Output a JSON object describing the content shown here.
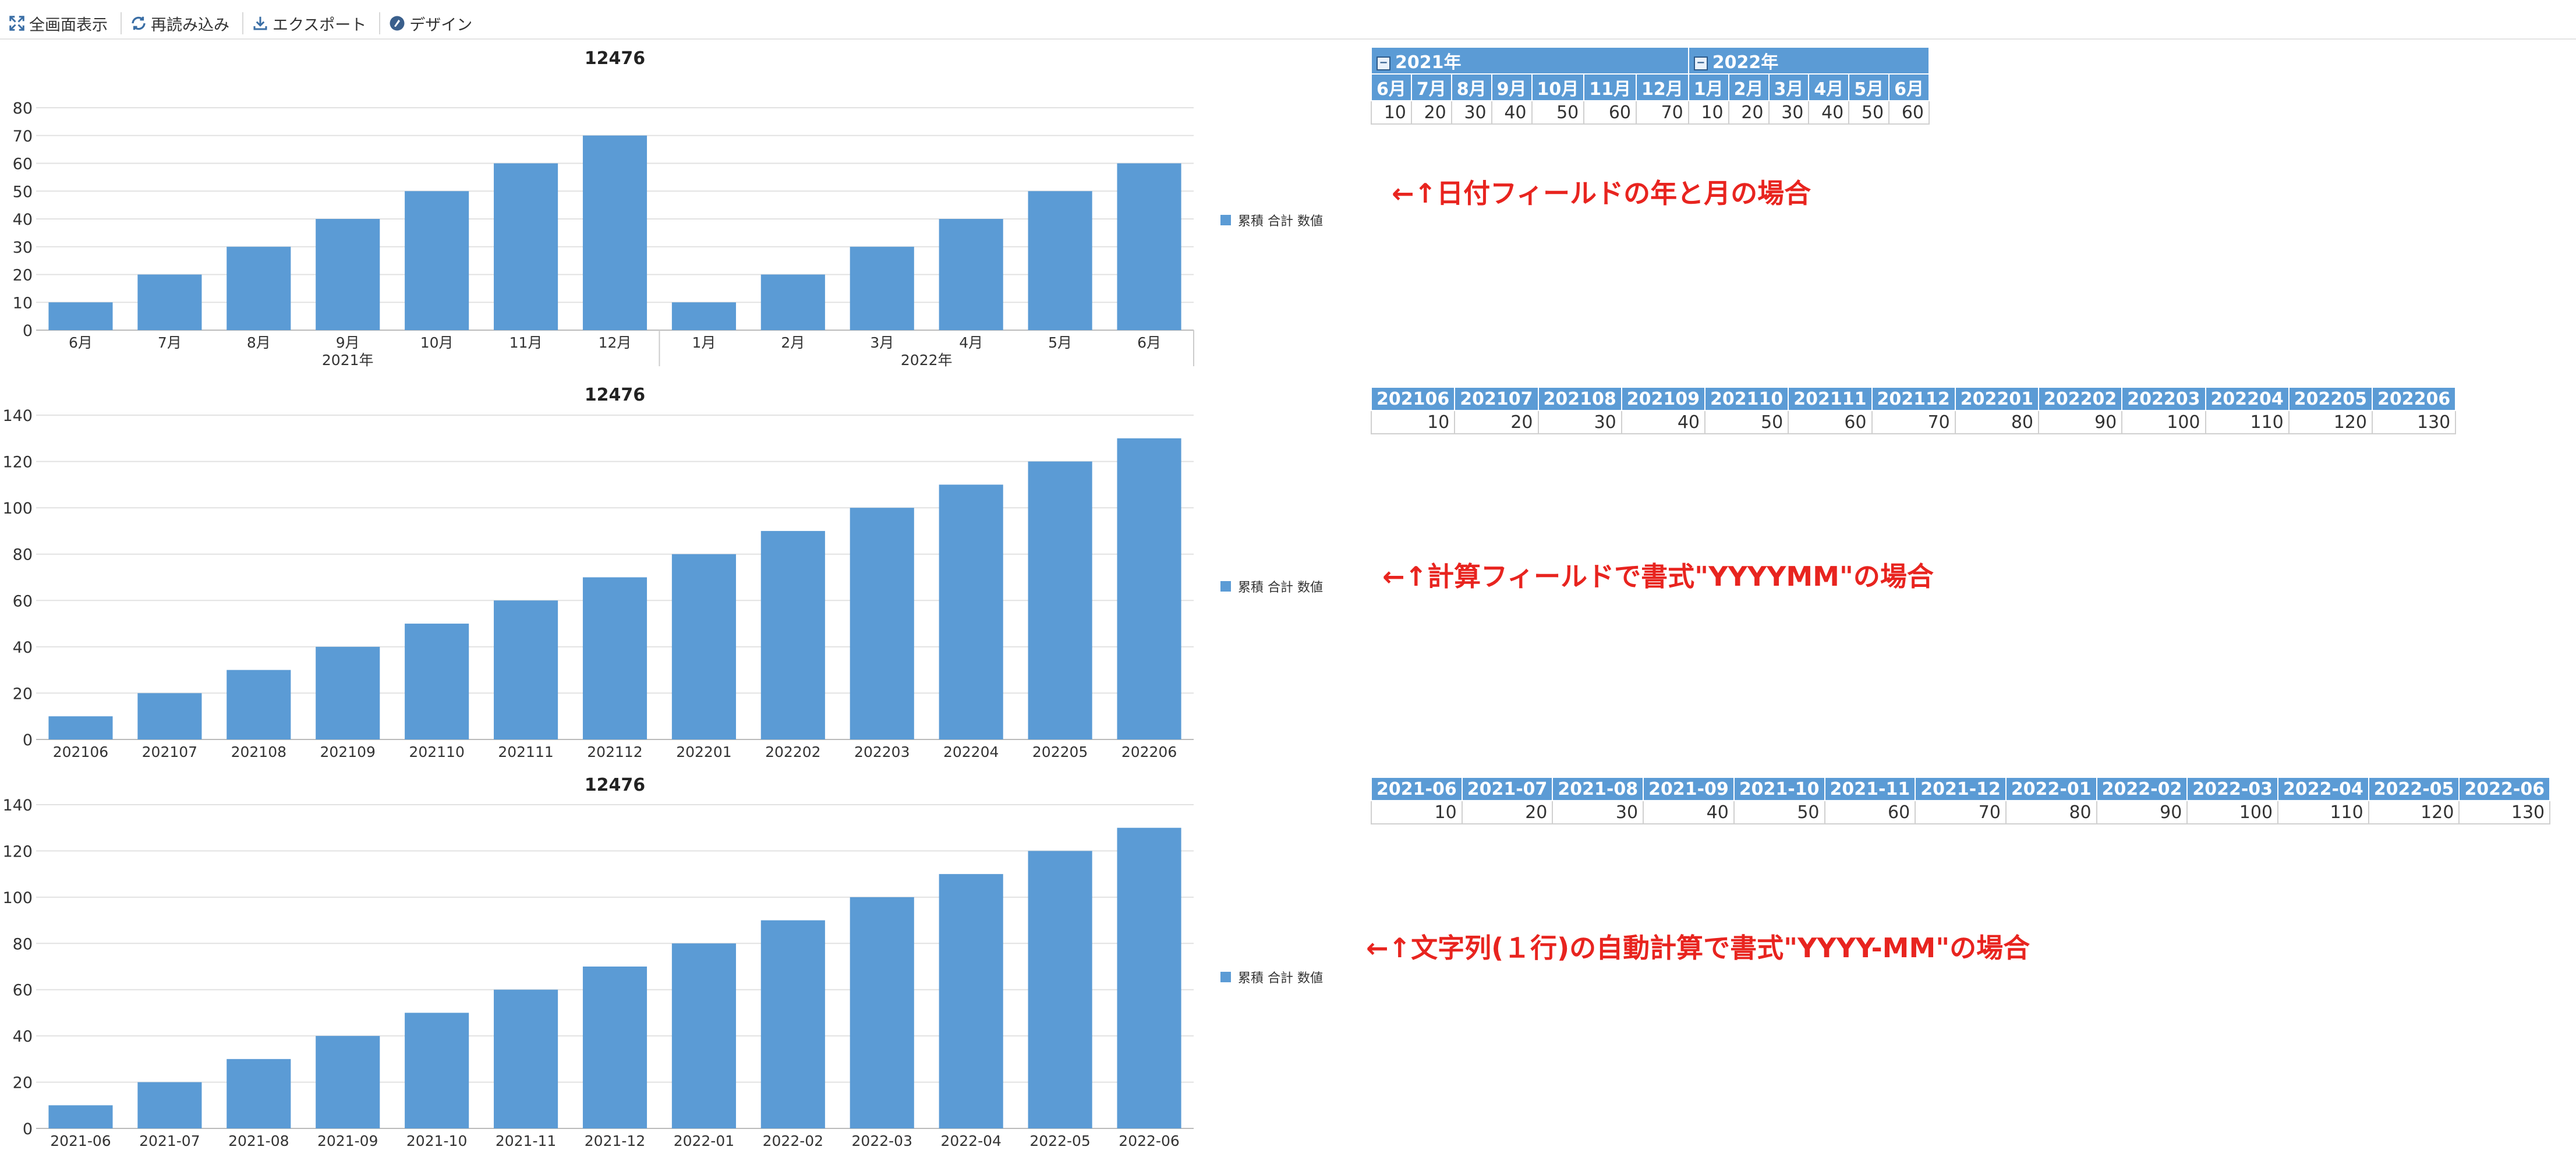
{
  "toolbar": {
    "fullscreen_label": "全画面表示",
    "reload_label": "再読み込み",
    "export_label": "エクスポート",
    "design_label": "デザイン"
  },
  "colors": {
    "bar": "#5b9bd5",
    "note": "#e8241f",
    "header": "#5b9bd5"
  },
  "legend_label": "累積 合計 数値",
  "chart_data": [
    {
      "type": "bar",
      "title": "12476",
      "categories": [
        "6月",
        "7月",
        "8月",
        "9月",
        "10月",
        "11月",
        "12月",
        "1月",
        "2月",
        "3月",
        "4月",
        "5月",
        "6月"
      ],
      "groups": [
        {
          "label": "2021年",
          "count": 7
        },
        {
          "label": "2022年",
          "count": 6
        }
      ],
      "series": [
        {
          "name": "累積 合計 数値",
          "values": [
            10,
            20,
            30,
            40,
            50,
            60,
            70,
            10,
            20,
            30,
            40,
            50,
            60
          ]
        }
      ],
      "ylim": [
        0,
        80
      ],
      "yticks": [
        0,
        10,
        20,
        30,
        40,
        50,
        60,
        70,
        80
      ]
    },
    {
      "type": "bar",
      "title": "12476",
      "categories": [
        "202106",
        "202107",
        "202108",
        "202109",
        "202110",
        "202111",
        "202112",
        "202201",
        "202202",
        "202203",
        "202204",
        "202205",
        "202206"
      ],
      "series": [
        {
          "name": "累積 合計 数値",
          "values": [
            10,
            20,
            30,
            40,
            50,
            60,
            70,
            80,
            90,
            100,
            110,
            120,
            130
          ]
        }
      ],
      "ylim": [
        0,
        140
      ],
      "yticks": [
        0,
        20,
        40,
        60,
        80,
        100,
        120,
        140
      ]
    },
    {
      "type": "bar",
      "title": "12476",
      "categories": [
        "2021-06",
        "2021-07",
        "2021-08",
        "2021-09",
        "2021-10",
        "2021-11",
        "2021-12",
        "2022-01",
        "2022-02",
        "2022-03",
        "2022-04",
        "2022-05",
        "2022-06"
      ],
      "series": [
        {
          "name": "累積 合計 数値",
          "values": [
            10,
            20,
            30,
            40,
            50,
            60,
            70,
            80,
            90,
            100,
            110,
            120,
            130
          ]
        }
      ],
      "ylim": [
        0,
        140
      ],
      "yticks": [
        0,
        20,
        40,
        60,
        80,
        100,
        120,
        140
      ]
    }
  ],
  "tables": [
    {
      "years": [
        {
          "label": "2021年",
          "span": 7
        },
        {
          "label": "2022年",
          "span": 6
        }
      ],
      "headers": [
        "6月",
        "7月",
        "8月",
        "9月",
        "10月",
        "11月",
        "12月",
        "1月",
        "2月",
        "3月",
        "4月",
        "5月",
        "6月"
      ],
      "values": [
        "10",
        "20",
        "30",
        "40",
        "50",
        "60",
        "70",
        "10",
        "20",
        "30",
        "40",
        "50",
        "60"
      ]
    },
    {
      "headers": [
        "202106",
        "202107",
        "202108",
        "202109",
        "202110",
        "202111",
        "202112",
        "202201",
        "202202",
        "202203",
        "202204",
        "202205",
        "202206"
      ],
      "values": [
        "10",
        "20",
        "30",
        "40",
        "50",
        "60",
        "70",
        "80",
        "90",
        "100",
        "110",
        "120",
        "130"
      ]
    },
    {
      "headers": [
        "2021-06",
        "2021-07",
        "2021-08",
        "2021-09",
        "2021-10",
        "2021-11",
        "2021-12",
        "2022-01",
        "2022-02",
        "2022-03",
        "2022-04",
        "2022-05",
        "2022-06"
      ],
      "values": [
        "10",
        "20",
        "30",
        "40",
        "50",
        "60",
        "70",
        "80",
        "90",
        "100",
        "110",
        "120",
        "130"
      ]
    }
  ],
  "notes": [
    "←↑日付フィールドの年と月の場合",
    "←↑計算フィールドで書式\"YYYYMM\"の場合",
    "←↑文字列(１行)の自動計算で書式\"YYYY-MM\"の場合"
  ]
}
